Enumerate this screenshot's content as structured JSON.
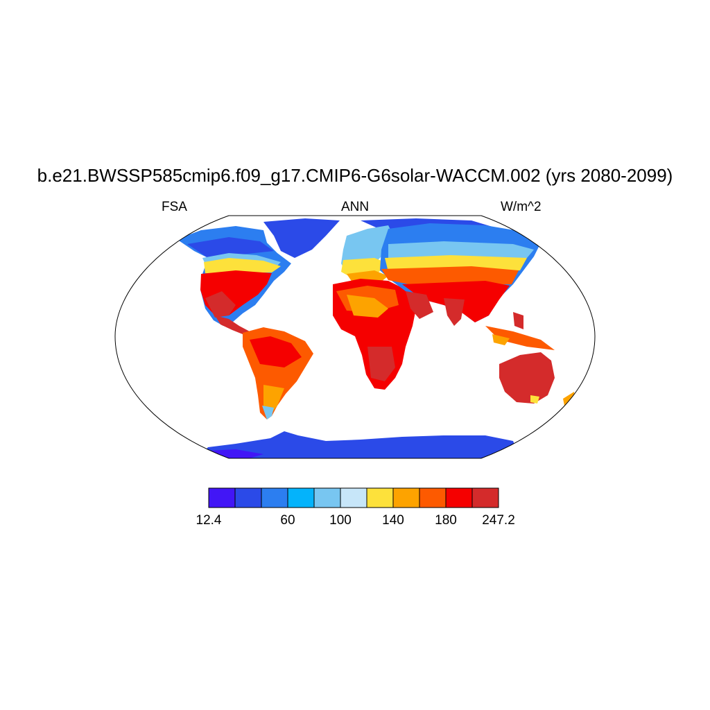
{
  "title": "b.e21.BWSSP585cmip6.f09_g17.CMIP6-G6solar-WACCM.002 (yrs 2080-2099)",
  "subtitle_left": "FSA",
  "subtitle_center": "ANN",
  "subtitle_right": "W/m^2",
  "colorbar": {
    "colors": [
      "#4216f6",
      "#2b4ae8",
      "#2c7ef0",
      "#04b3fb",
      "#78c6f1",
      "#c7e6f9",
      "#fde13b",
      "#fda300",
      "#fd5a00",
      "#f50000",
      "#d42b2b"
    ],
    "labels": [
      {
        "text": "12.4",
        "index": 0
      },
      {
        "text": "60",
        "index": 3
      },
      {
        "text": "100",
        "index": 5
      },
      {
        "text": "140",
        "index": 7
      },
      {
        "text": "180",
        "index": 9
      },
      {
        "text": "247.2",
        "index": 11
      }
    ]
  }
}
